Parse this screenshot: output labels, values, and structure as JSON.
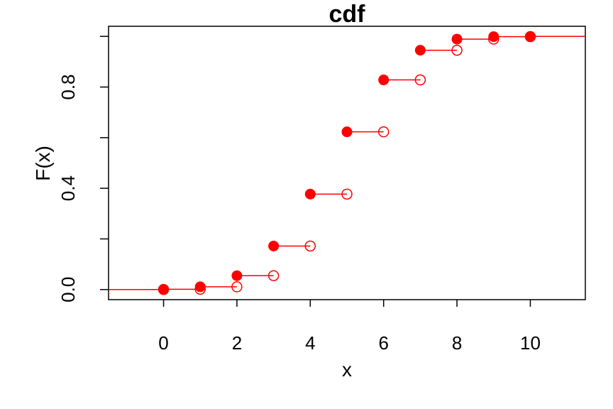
{
  "chart_data": {
    "type": "step",
    "title": "cdf",
    "xlabel": "x",
    "ylabel": "F(x)",
    "xlim": [
      -1.5,
      11.5
    ],
    "ylim": [
      -0.04,
      1.04
    ],
    "x_ticks": [
      0,
      2,
      4,
      6,
      8,
      10
    ],
    "y_ticks": [
      0.0,
      0.4,
      0.8
    ],
    "y_tick_labels": [
      "0.0",
      "0.4",
      "0.8"
    ],
    "y_minor_ticks": [
      0.2,
      0.6,
      1.0
    ],
    "grid": false,
    "legend": "none",
    "color": "#ff0000",
    "x": [
      0,
      1,
      2,
      3,
      4,
      5,
      6,
      7,
      8,
      9,
      10
    ],
    "values": [
      0.001,
      0.0107,
      0.0547,
      0.1719,
      0.377,
      0.623,
      0.8281,
      0.9453,
      0.9893,
      0.999,
      1.0
    ]
  }
}
